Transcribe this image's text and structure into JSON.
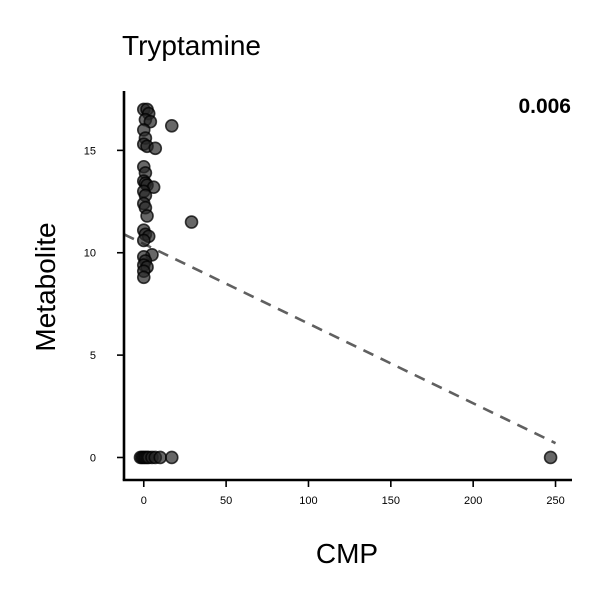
{
  "chart_data": {
    "type": "scatter",
    "title": "Tryptamine",
    "xlabel": "CMP",
    "ylabel": "Metabolite",
    "annotation": "0.006",
    "xlim": [
      -12,
      260
    ],
    "ylim": [
      -1.1,
      17.9
    ],
    "xticks": [
      0,
      50,
      100,
      150,
      200,
      250
    ],
    "yticks": [
      0,
      5,
      10,
      15
    ],
    "grid": false,
    "trendline": {
      "style": "dashed",
      "x": [
        -12,
        250
      ],
      "y": [
        10.9,
        0.7
      ]
    },
    "points": [
      {
        "x": 0,
        "y": 17.0
      },
      {
        "x": 2,
        "y": 17.0
      },
      {
        "x": 3,
        "y": 16.8
      },
      {
        "x": 1,
        "y": 16.5
      },
      {
        "x": 4,
        "y": 16.4
      },
      {
        "x": 17,
        "y": 16.2
      },
      {
        "x": 0,
        "y": 16.0
      },
      {
        "x": 1,
        "y": 15.6
      },
      {
        "x": 0,
        "y": 15.3
      },
      {
        "x": 2,
        "y": 15.2
      },
      {
        "x": 7,
        "y": 15.1
      },
      {
        "x": 0,
        "y": 14.2
      },
      {
        "x": 1,
        "y": 13.9
      },
      {
        "x": 0,
        "y": 13.5
      },
      {
        "x": 1,
        "y": 13.4
      },
      {
        "x": 2,
        "y": 13.3
      },
      {
        "x": 6,
        "y": 13.2
      },
      {
        "x": 0,
        "y": 13.0
      },
      {
        "x": 1,
        "y": 12.8
      },
      {
        "x": 0,
        "y": 12.4
      },
      {
        "x": 1,
        "y": 12.2
      },
      {
        "x": 2,
        "y": 11.8
      },
      {
        "x": 29,
        "y": 11.5
      },
      {
        "x": 0,
        "y": 11.1
      },
      {
        "x": 1,
        "y": 10.9
      },
      {
        "x": 3,
        "y": 10.8
      },
      {
        "x": 0,
        "y": 10.6
      },
      {
        "x": 5,
        "y": 9.9
      },
      {
        "x": 0,
        "y": 9.8
      },
      {
        "x": 1,
        "y": 9.6
      },
      {
        "x": 0,
        "y": 9.4
      },
      {
        "x": 2,
        "y": 9.3
      },
      {
        "x": 0,
        "y": 9.1
      },
      {
        "x": 0,
        "y": 8.8
      },
      {
        "x": -2,
        "y": 0
      },
      {
        "x": -1,
        "y": 0
      },
      {
        "x": 0,
        "y": 0
      },
      {
        "x": 1,
        "y": 0
      },
      {
        "x": 2,
        "y": 0
      },
      {
        "x": 3,
        "y": 0
      },
      {
        "x": 5,
        "y": 0
      },
      {
        "x": 7,
        "y": 0
      },
      {
        "x": 10,
        "y": 0
      },
      {
        "x": 17,
        "y": 0
      },
      {
        "x": 247,
        "y": 0
      }
    ]
  }
}
